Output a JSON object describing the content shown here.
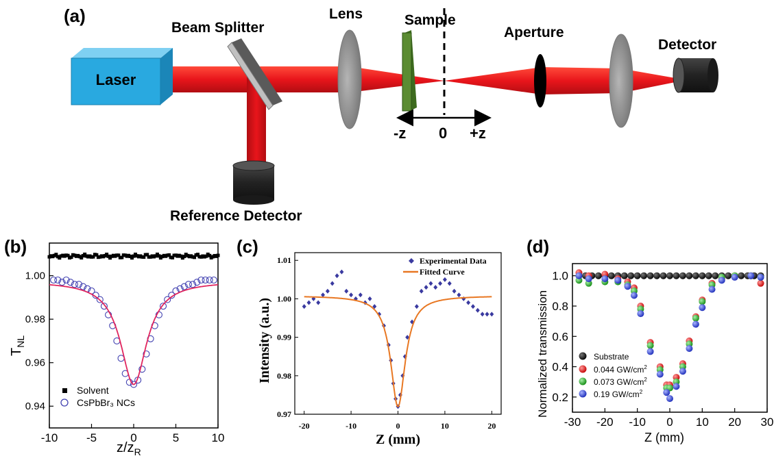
{
  "panel_a": {
    "tag": "(a)",
    "labels": {
      "laser": "Laser",
      "beam_splitter": "Beam Splitter",
      "lens": "Lens",
      "sample": "Sample",
      "aperture": "Aperture",
      "detector": "Detector",
      "reference_detector": "Reference Detector",
      "neg_z": "-z",
      "zero": "0",
      "pos_z": "+z"
    },
    "colors": {
      "laser_box": "#29a9e0",
      "beam": "#e8151b",
      "sample": "#5b8c32",
      "optic": "#8c8c8c",
      "detector": "#2b2b2b"
    }
  },
  "chart_data": [
    {
      "panel": "(b)",
      "type": "scatter",
      "xlabel": "z/z",
      "xlabel_sub": "R",
      "ylabel": "T",
      "ylabel_sub": "NL",
      "xlim": [
        -10,
        10
      ],
      "ylim": [
        0.93,
        1.015
      ],
      "xticks": [
        "-10",
        "-5",
        "0",
        "5",
        "10"
      ],
      "yticks": [
        "0.94",
        "0.96",
        "0.98",
        "1.00"
      ],
      "legend_position": "bottom-left",
      "series": [
        {
          "name": "Solvent",
          "marker": "square",
          "color": "#000000",
          "y_level": 1.009,
          "x_range": [
            -10,
            10
          ]
        },
        {
          "name": "CsPbBr₃ NCs",
          "marker": "circle",
          "color": "#4040b0",
          "x": [
            -9.5,
            -9,
            -8.5,
            -8,
            -7.5,
            -7,
            -6.5,
            -6,
            -5.5,
            -5,
            -4.5,
            -4,
            -3.5,
            -3,
            -2.5,
            -2,
            -1.5,
            -1,
            -0.5,
            0,
            0.5,
            1,
            1.5,
            2,
            2.5,
            3,
            3.5,
            4,
            4.5,
            5,
            5.5,
            6,
            6.5,
            7,
            7.5,
            8,
            8.5,
            9,
            9.5
          ],
          "y": [
            0.998,
            0.998,
            0.997,
            0.998,
            0.997,
            0.996,
            0.996,
            0.995,
            0.994,
            0.993,
            0.991,
            0.989,
            0.986,
            0.982,
            0.977,
            0.97,
            0.962,
            0.955,
            0.951,
            0.95,
            0.952,
            0.957,
            0.964,
            0.971,
            0.977,
            0.982,
            0.986,
            0.989,
            0.991,
            0.993,
            0.994,
            0.995,
            0.996,
            0.996,
            0.997,
            0.998,
            0.998,
            0.998,
            0.998
          ]
        },
        {
          "name": "fit",
          "type": "line",
          "color": "#e0245e",
          "baseline": 0.9975,
          "depth": 0.0475,
          "width": 1.9
        }
      ]
    },
    {
      "panel": "(c)",
      "type": "scatter",
      "xlabel": "Z (mm)",
      "ylabel": "Intensity (a.u.)",
      "xlim": [
        -22,
        22
      ],
      "ylim": [
        0.97,
        1.012
      ],
      "xticks": [
        "-20",
        "-10",
        "0",
        "10",
        "20"
      ],
      "yticks": [
        "0.97",
        "0.98",
        "0.99",
        "1.00",
        "1.01"
      ],
      "legend_position": "top-right",
      "series": [
        {
          "name": "Experimental Data",
          "marker": "diamond",
          "color": "#3a3aa0",
          "x": [
            -20,
            -19,
            -18,
            -17,
            -16,
            -15,
            -14,
            -13,
            -12,
            -11,
            -10,
            -9,
            -8,
            -7,
            -6,
            -5,
            -4,
            -3,
            -2,
            -1.5,
            -1,
            -0.5,
            0,
            0.5,
            1,
            1.5,
            2,
            3,
            4,
            5,
            6,
            7,
            8,
            9,
            10,
            11,
            12,
            13,
            14,
            15,
            16,
            17,
            18,
            19,
            20
          ],
          "y": [
            0.998,
            0.999,
            1.0,
            0.999,
            1.001,
            1.002,
            1.004,
            1.006,
            1.007,
            1.002,
            1.001,
            1.0,
            1.001,
            0.999,
            1.0,
            0.998,
            0.996,
            0.993,
            0.988,
            0.984,
            0.978,
            0.974,
            0.972,
            0.975,
            0.98,
            0.985,
            0.99,
            0.994,
            0.998,
            1.002,
            1.003,
            1.004,
            1.003,
            1.004,
            1.005,
            1.004,
            1.002,
            1.001,
            1.0,
            0.999,
            0.998,
            0.997,
            0.996,
            0.996,
            0.996
          ]
        },
        {
          "name": "Fitted Curve",
          "type": "line",
          "color": "#e87722",
          "baseline": 1.0008,
          "depth": 0.0288,
          "width": 1.9
        }
      ]
    },
    {
      "panel": "(d)",
      "type": "scatter",
      "xlabel": "Z (mm)",
      "ylabel": "Normalized transmission",
      "xlim": [
        -30,
        30
      ],
      "ylim": [
        0.1,
        1.08
      ],
      "xticks": [
        "-30",
        "-20",
        "-10",
        "0",
        "10",
        "20",
        "30"
      ],
      "yticks": [
        "0.2",
        "0.4",
        "0.6",
        "0.8",
        "1.0"
      ],
      "legend_position": "bottom-left",
      "series": [
        {
          "name": "Substrate",
          "color": "#111111",
          "x": [
            -28,
            -26,
            -24,
            -22,
            -20,
            -18,
            -16,
            -14,
            -12,
            -10,
            -8,
            -6,
            -4,
            -2,
            0,
            2,
            4,
            6,
            8,
            10,
            12,
            14,
            16,
            18,
            20,
            22,
            24,
            26,
            28
          ],
          "y": [
            1.0,
            1.0,
            1.0,
            1.0,
            1.0,
            1.0,
            1.0,
            1.0,
            1.0,
            1.0,
            1.0,
            1.0,
            1.0,
            1.0,
            1.0,
            1.0,
            1.0,
            1.0,
            1.0,
            1.0,
            1.0,
            1.0,
            1.0,
            1.0,
            1.0,
            1.0,
            1.0,
            1.0,
            1.0
          ]
        },
        {
          "name": "0.044 GW/cm",
          "sup": "2",
          "color": "#e02828",
          "x": [
            -28,
            -25,
            -20,
            -16,
            -13,
            -11,
            -9,
            -6,
            -3,
            -1,
            0,
            2,
            4,
            6,
            8,
            10,
            13,
            16,
            20,
            25,
            28
          ],
          "y": [
            1.02,
            1.0,
            1.01,
            0.98,
            0.96,
            0.92,
            0.8,
            0.56,
            0.4,
            0.28,
            0.28,
            0.33,
            0.42,
            0.57,
            0.73,
            0.84,
            0.95,
            0.98,
            1.0,
            1.0,
            0.95
          ]
        },
        {
          "name": "0.073 GW/cm",
          "sup": "2",
          "color": "#28a028",
          "x": [
            -28,
            -25,
            -20,
            -16,
            -13,
            -11,
            -9,
            -6,
            -3,
            -1,
            0,
            2,
            4,
            6,
            8,
            10,
            13,
            16,
            20,
            25,
            28
          ],
          "y": [
            0.97,
            0.95,
            0.96,
            0.96,
            0.94,
            0.9,
            0.78,
            0.54,
            0.38,
            0.26,
            0.26,
            0.3,
            0.4,
            0.55,
            0.72,
            0.83,
            0.94,
            0.99,
            1.0,
            1.0,
            0.99
          ]
        },
        {
          "name": "0.19 GW/cm",
          "sup": "2",
          "color": "#3344cc",
          "x": [
            -28,
            -25,
            -20,
            -16,
            -13,
            -11,
            -9,
            -6,
            -3,
            -1,
            0,
            2,
            4,
            6,
            8,
            10,
            13,
            16,
            20,
            25,
            28
          ],
          "y": [
            1.0,
            0.98,
            0.98,
            0.97,
            0.93,
            0.87,
            0.75,
            0.5,
            0.35,
            0.23,
            0.19,
            0.27,
            0.37,
            0.52,
            0.68,
            0.79,
            0.91,
            0.97,
            0.99,
            1.0,
            0.99
          ]
        }
      ]
    }
  ]
}
